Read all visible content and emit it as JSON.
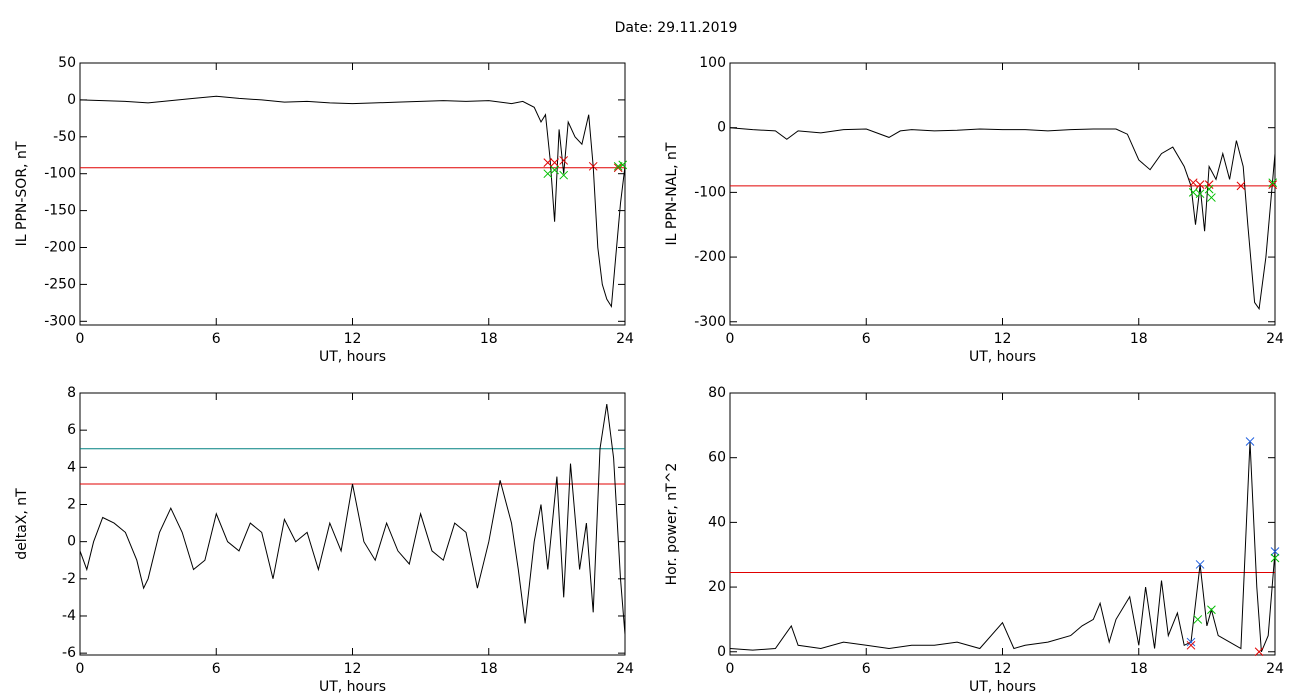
{
  "title": "Date:  29.11.2019",
  "chart_data": [
    {
      "type": "line",
      "xlabel": "UT, hours",
      "ylabel": "IL PPN-SOR, nT",
      "xlim": [
        0,
        24
      ],
      "xticks": [
        0,
        6,
        12,
        18,
        24
      ],
      "ylim": [
        -305,
        50
      ],
      "yticks": [
        50,
        0,
        -50,
        -100,
        -150,
        -200,
        -250,
        -300
      ],
      "hlines": [
        {
          "value": -92,
          "color": "#e00000"
        }
      ],
      "series": [
        {
          "color": "#000000",
          "x": [
            0,
            1,
            2,
            3,
            4,
            5,
            6,
            7,
            8,
            9,
            10,
            11,
            12,
            13,
            14,
            15,
            16,
            17,
            18,
            19,
            19.5,
            20,
            20.3,
            20.5,
            20.7,
            20.9,
            21.1,
            21.3,
            21.5,
            21.8,
            22.1,
            22.4,
            22.6,
            22.8,
            23,
            23.2,
            23.4,
            23.6,
            23.8,
            24
          ],
          "values": [
            0,
            -1,
            -2,
            -4,
            -1,
            2,
            5,
            2,
            0,
            -3,
            -2,
            -4,
            -5,
            -4,
            -3,
            -2,
            -1,
            -2,
            -1,
            -5,
            -2,
            -10,
            -30,
            -20,
            -80,
            -165,
            -40,
            -100,
            -30,
            -50,
            -60,
            -20,
            -90,
            -200,
            -250,
            -270,
            -280,
            -210,
            -140,
            -90
          ]
        },
        {
          "mode": "markers",
          "color": "#e00000",
          "x": [
            20.6,
            20.9,
            21.3,
            22.6,
            23.7
          ],
          "values": [
            -85,
            -85,
            -82,
            -90,
            -92
          ]
        },
        {
          "mode": "markers",
          "color": "#00c000",
          "x": [
            20.6,
            20.9,
            21.3,
            23.7,
            23.9
          ],
          "values": [
            -100,
            -95,
            -102,
            -90,
            -88
          ]
        }
      ]
    },
    {
      "type": "line",
      "xlabel": "UT, hours",
      "ylabel": "IL PPN-NAL, nT",
      "xlim": [
        0,
        24
      ],
      "xticks": [
        0,
        6,
        12,
        18,
        24
      ],
      "ylim": [
        -305,
        100
      ],
      "yticks": [
        100,
        0,
        -100,
        -200,
        -300
      ],
      "hlines": [
        {
          "value": -90,
          "color": "#e00000"
        }
      ],
      "series": [
        {
          "color": "#000000",
          "x": [
            0,
            1,
            2,
            2.5,
            3,
            4,
            5,
            6,
            7,
            7.5,
            8,
            9,
            10,
            11,
            12,
            13,
            14,
            15,
            16,
            17,
            17.5,
            18,
            18.5,
            19,
            19.5,
            20,
            20.3,
            20.5,
            20.7,
            20.9,
            21.1,
            21.4,
            21.7,
            22,
            22.3,
            22.6,
            22.8,
            23.1,
            23.3,
            23.6,
            24
          ],
          "values": [
            0,
            -3,
            -5,
            -18,
            -5,
            -8,
            -3,
            -2,
            -15,
            -5,
            -3,
            -5,
            -4,
            -2,
            -3,
            -3,
            -5,
            -3,
            -2,
            -2,
            -10,
            -50,
            -65,
            -40,
            -30,
            -60,
            -90,
            -150,
            -90,
            -160,
            -60,
            -80,
            -40,
            -80,
            -20,
            -60,
            -150,
            -270,
            -280,
            -200,
            -40
          ]
        },
        {
          "mode": "markers",
          "color": "#e00000",
          "x": [
            20.4,
            20.7,
            21.1,
            22.5,
            23.9
          ],
          "values": [
            -85,
            -88,
            -88,
            -90,
            -88
          ]
        },
        {
          "mode": "markers",
          "color": "#00c000",
          "x": [
            20.4,
            20.7,
            21.1,
            21.2,
            23.9
          ],
          "values": [
            -100,
            -102,
            -95,
            -108,
            -85
          ]
        }
      ]
    },
    {
      "type": "line",
      "xlabel": "UT, hours",
      "ylabel": "deltaX, nT",
      "xlim": [
        0,
        24
      ],
      "xticks": [
        0,
        6,
        12,
        18,
        24
      ],
      "ylim": [
        -6.1,
        8
      ],
      "yticks": [
        8,
        6,
        4,
        2,
        0,
        -2,
        -4,
        -6
      ],
      "hlines": [
        {
          "value": 5,
          "color": "#008080"
        },
        {
          "value": 3.1,
          "color": "#e00000"
        }
      ],
      "series": [
        {
          "color": "#000000",
          "x": [
            0,
            0.3,
            0.6,
            1,
            1.5,
            2,
            2.5,
            2.8,
            3,
            3.5,
            4,
            4.5,
            5,
            5.5,
            6,
            6.5,
            7,
            7.5,
            8,
            8.5,
            9,
            9.5,
            10,
            10.5,
            11,
            11.5,
            12,
            12.5,
            13,
            13.5,
            14,
            14.5,
            15,
            15.5,
            16,
            16.5,
            17,
            17.5,
            18,
            18.5,
            19,
            19.3,
            19.6,
            20,
            20.3,
            20.6,
            21,
            21.3,
            21.6,
            22,
            22.3,
            22.6,
            22.9,
            23.2,
            23.5,
            23.8,
            24
          ],
          "values": [
            -0.5,
            -1.5,
            0,
            1.3,
            1,
            0.5,
            -1,
            -2.5,
            -2,
            0.5,
            1.8,
            0.5,
            -1.5,
            -1,
            1.5,
            0,
            -0.5,
            1,
            0.5,
            -2,
            1.2,
            0,
            0.5,
            -1.5,
            1,
            -0.5,
            3.1,
            0,
            -1,
            1,
            -0.5,
            -1.2,
            1.5,
            -0.5,
            -1,
            1,
            0.5,
            -2.5,
            0,
            3.3,
            1,
            -1.5,
            -4.4,
            0,
            2,
            -1.5,
            3.5,
            -3,
            4.2,
            -1.5,
            1,
            -3.8,
            5,
            7.4,
            4.5,
            -2,
            -5
          ]
        }
      ]
    },
    {
      "type": "line",
      "xlabel": "UT, hours",
      "ylabel": "Hor. power, nT^2",
      "xlim": [
        0,
        24
      ],
      "xticks": [
        0,
        6,
        12,
        18,
        24
      ],
      "ylim": [
        -1,
        80
      ],
      "yticks": [
        80,
        60,
        40,
        20,
        0
      ],
      "hlines": [
        {
          "value": 24.5,
          "color": "#e00000"
        }
      ],
      "series": [
        {
          "color": "#000000",
          "x": [
            0,
            1,
            2,
            2.7,
            3,
            4,
            5,
            6,
            7,
            8,
            9,
            10,
            11,
            12,
            12.5,
            13,
            14,
            15,
            15.5,
            16,
            16.3,
            16.7,
            17,
            17.6,
            18,
            18.3,
            18.7,
            19,
            19.3,
            19.7,
            20,
            20.3,
            20.7,
            21,
            21.2,
            21.5,
            22,
            22.5,
            22.9,
            23.2,
            23.4,
            23.7,
            24
          ],
          "values": [
            1,
            0.5,
            1,
            8,
            2,
            1,
            3,
            2,
            1,
            2,
            2,
            3,
            1,
            9,
            1,
            2,
            3,
            5,
            8,
            10,
            15,
            3,
            10,
            17,
            2,
            20,
            1,
            22,
            5,
            12,
            2,
            3,
            27,
            8,
            13,
            5,
            3,
            1,
            65,
            20,
            0,
            5,
            31
          ]
        },
        {
          "mode": "markers",
          "color": "#2060e0",
          "x": [
            22.9,
            20.7,
            20.3,
            24
          ],
          "values": [
            65,
            27,
            3,
            31
          ]
        },
        {
          "mode": "markers",
          "color": "#00c000",
          "x": [
            21.2,
            20.6,
            24
          ],
          "values": [
            13,
            10,
            29
          ]
        },
        {
          "mode": "markers",
          "color": "#e00000",
          "x": [
            20.3,
            23.3
          ],
          "values": [
            2,
            0
          ]
        }
      ]
    }
  ]
}
